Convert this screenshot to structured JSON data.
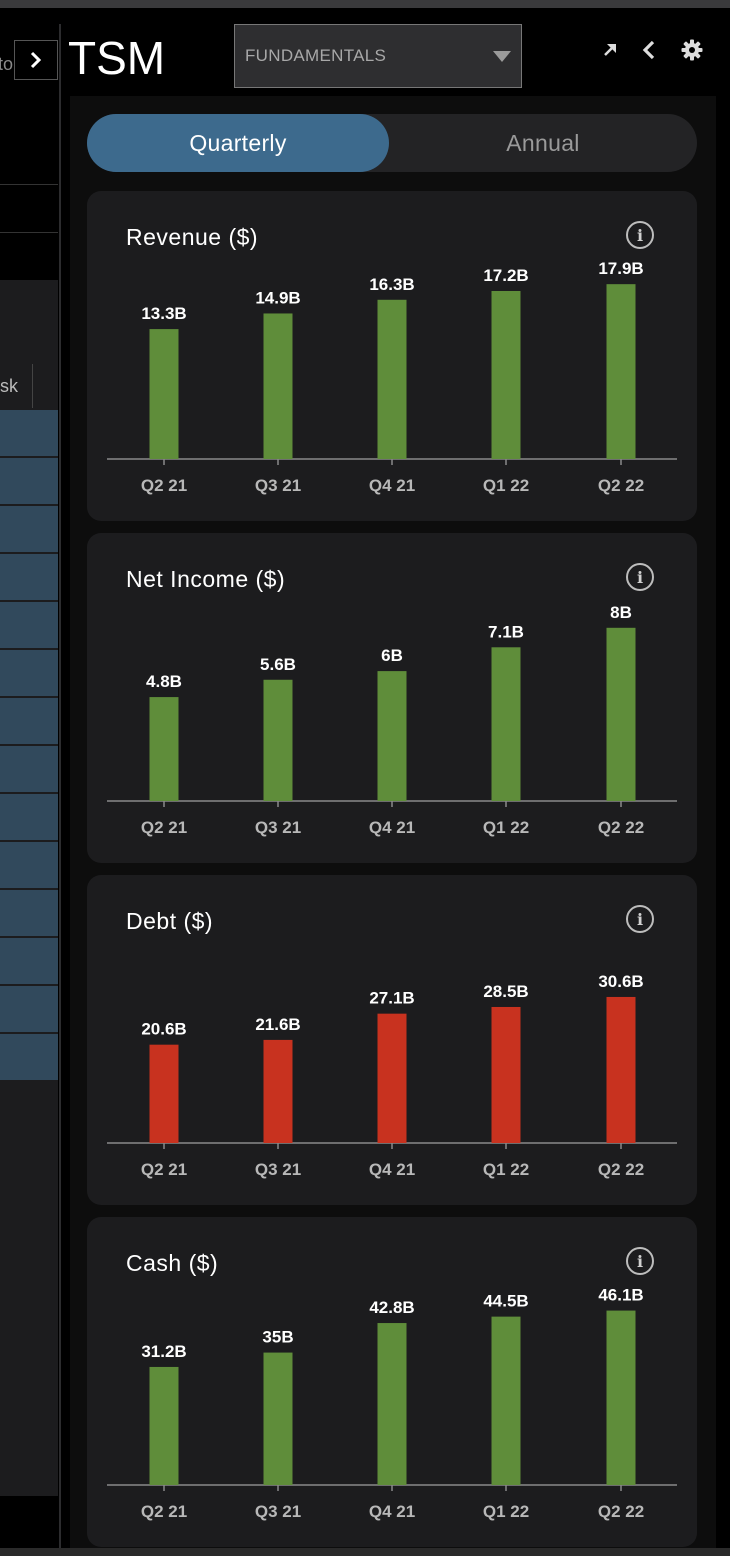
{
  "header": {
    "ticker": "TSM",
    "view_select": {
      "selected": "FUNDAMENTALS"
    },
    "icons": [
      "collapse-chevron-icon",
      "popout-arrow-icon",
      "back-chevron-icon",
      "gear-icon"
    ]
  },
  "background_list": {
    "cut_text": "to",
    "column_header": "sk"
  },
  "period_toggle": {
    "options": [
      "Quarterly",
      "Annual"
    ],
    "selected": "Quarterly"
  },
  "colors": {
    "accent": "#3d6a8d",
    "positive_bar": "#5f8d3a",
    "negative_bar": "#c8321f"
  },
  "cards": [
    {
      "title": "Revenue ($)",
      "chart_data": {
        "type": "bar",
        "categories": [
          "Q2 21",
          "Q3 21",
          "Q4 21",
          "Q1 22",
          "Q2 22"
        ],
        "values": [
          13.3,
          14.9,
          16.3,
          17.2,
          17.9
        ],
        "value_labels": [
          "13.3B",
          "14.9B",
          "16.3B",
          "17.2B",
          "17.9B"
        ],
        "unit": "B",
        "color": "#5f8d3a",
        "ylim": [
          0,
          21.5
        ]
      }
    },
    {
      "title": "Net Income ($)",
      "chart_data": {
        "type": "bar",
        "categories": [
          "Q2 21",
          "Q3 21",
          "Q4 21",
          "Q1 22",
          "Q2 22"
        ],
        "values": [
          4.8,
          5.6,
          6,
          7.1,
          8
        ],
        "value_labels": [
          "4.8B",
          "5.6B",
          "6B",
          "7.1B",
          "8B"
        ],
        "unit": "B",
        "color": "#5f8d3a",
        "ylim": [
          0,
          9.7
        ]
      }
    },
    {
      "title": "Debt ($)",
      "chart_data": {
        "type": "bar",
        "categories": [
          "Q2 21",
          "Q3 21",
          "Q4 21",
          "Q1 22",
          "Q2 22"
        ],
        "values": [
          20.6,
          21.6,
          27.1,
          28.5,
          30.6
        ],
        "value_labels": [
          "20.6B",
          "21.6B",
          "27.1B",
          "28.5B",
          "30.6B"
        ],
        "unit": "B",
        "color": "#c8321f",
        "ylim": [
          0,
          44
        ]
      }
    },
    {
      "title": "Cash ($)",
      "chart_data": {
        "type": "bar",
        "categories": [
          "Q2 21",
          "Q3 21",
          "Q4 21",
          "Q1 22",
          "Q2 22"
        ],
        "values": [
          31.2,
          35,
          42.8,
          44.5,
          46.1
        ],
        "value_labels": [
          "31.2B",
          "35B",
          "42.8B",
          "44.5B",
          "46.1B"
        ],
        "unit": "B",
        "color": "#5f8d3a",
        "ylim": [
          0,
          55.5
        ]
      }
    }
  ]
}
